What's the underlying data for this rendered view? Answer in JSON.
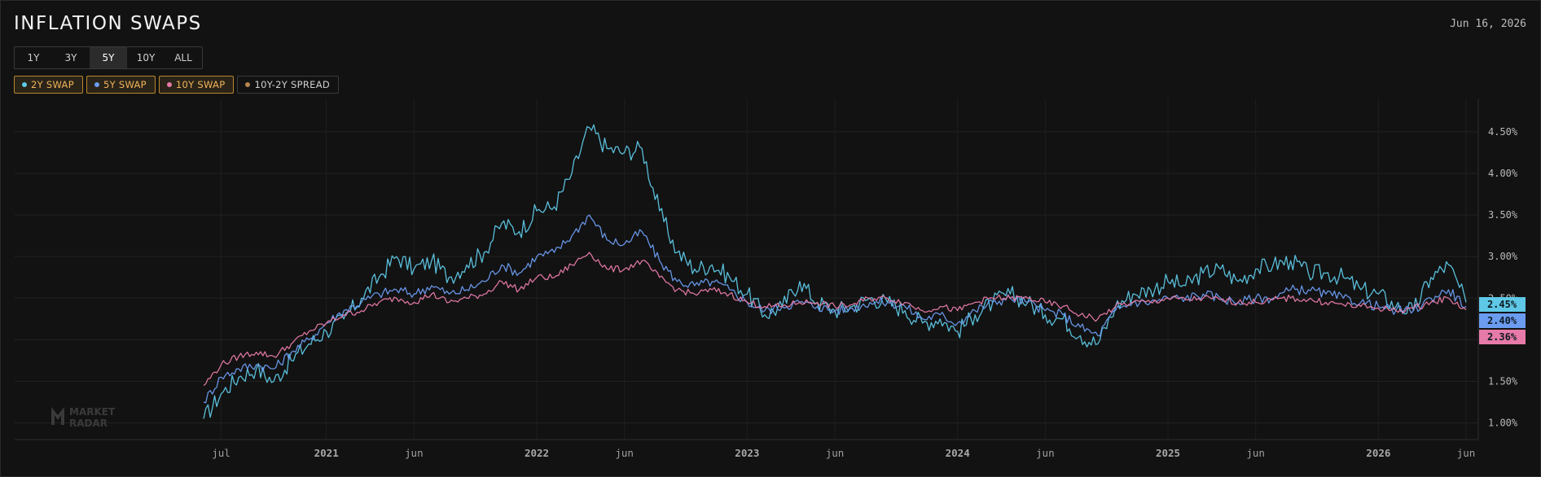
{
  "header": {
    "title": "INFLATION SWAPS",
    "date": "Jun 16, 2026"
  },
  "ranges": [
    {
      "label": "1Y",
      "active": false
    },
    {
      "label": "3Y",
      "active": false
    },
    {
      "label": "5Y",
      "active": true
    },
    {
      "label": "10Y",
      "active": false
    },
    {
      "label": "ALL",
      "active": false
    }
  ],
  "legend": [
    {
      "label": "2Y SWAP",
      "color": "#5ec8e6",
      "active": true
    },
    {
      "label": "5Y SWAP",
      "color": "#6b9cf0",
      "active": true
    },
    {
      "label": "10Y SWAP",
      "color": "#e67aa8",
      "active": true
    },
    {
      "label": "10Y-2Y SPREAD",
      "color": "#b8864e",
      "active": false
    }
  ],
  "watermark": "MARKET RADAR",
  "chart_data": {
    "type": "line",
    "x_axis_labels": [
      "jul",
      "2021",
      "jun",
      "2022",
      "jun",
      "2023",
      "jun",
      "2024",
      "jun",
      "2025",
      "jun",
      "2026",
      "jun"
    ],
    "y_axis_labels": [
      "4.50%",
      "4.00%",
      "3.50%",
      "3.00%",
      "2.50%",
      "2.00%",
      "1.50%",
      "1.00%"
    ],
    "ylim": [
      0.8,
      4.9
    ],
    "grid": true,
    "legend_placement": "top-left",
    "last_values": [
      {
        "series": "2Y SWAP",
        "label": "2.45%",
        "color": "#5ec8e6"
      },
      {
        "series": "5Y SWAP",
        "label": "2.40%",
        "color": "#6b9cf0"
      },
      {
        "series": "10Y SWAP",
        "label": "2.36%",
        "color": "#e67aa8"
      }
    ],
    "x": [
      "2020-06",
      "2020-07",
      "2020-08",
      "2020-09",
      "2020-10",
      "2020-11",
      "2020-12",
      "2021-01",
      "2021-02",
      "2021-03",
      "2021-04",
      "2021-05",
      "2021-06",
      "2021-07",
      "2021-08",
      "2021-09",
      "2021-10",
      "2021-11",
      "2021-12",
      "2022-01",
      "2022-02",
      "2022-03",
      "2022-04",
      "2022-05",
      "2022-06",
      "2022-07",
      "2022-08",
      "2022-09",
      "2022-10",
      "2022-11",
      "2022-12",
      "2023-01",
      "2023-02",
      "2023-03",
      "2023-04",
      "2023-05",
      "2023-06",
      "2023-07",
      "2023-08",
      "2023-09",
      "2023-10",
      "2023-11",
      "2023-12",
      "2024-01",
      "2024-02",
      "2024-03",
      "2024-04",
      "2024-05",
      "2024-06",
      "2024-07",
      "2024-08",
      "2024-09",
      "2024-10",
      "2024-11",
      "2024-12",
      "2025-01",
      "2025-02",
      "2025-03",
      "2025-04",
      "2025-05",
      "2025-06",
      "2025-07",
      "2025-08",
      "2025-09",
      "2025-10",
      "2025-11",
      "2025-12",
      "2026-01",
      "2026-02",
      "2026-03",
      "2026-04",
      "2026-05",
      "2026-06"
    ],
    "series": [
      {
        "name": "2Y SWAP",
        "color": "#5ec8e6",
        "values": [
          1.05,
          1.35,
          1.55,
          1.65,
          1.5,
          1.75,
          1.95,
          2.1,
          2.25,
          2.5,
          2.75,
          3.0,
          2.85,
          2.95,
          2.75,
          2.9,
          3.05,
          3.4,
          3.3,
          3.55,
          3.6,
          4.0,
          4.55,
          4.3,
          4.25,
          4.3,
          3.55,
          3.05,
          2.85,
          2.9,
          2.75,
          2.55,
          2.3,
          2.4,
          2.7,
          2.45,
          2.35,
          2.4,
          2.5,
          2.45,
          2.35,
          2.2,
          2.25,
          2.1,
          2.3,
          2.45,
          2.55,
          2.45,
          2.3,
          2.25,
          2.05,
          1.95,
          2.4,
          2.55,
          2.6,
          2.7,
          2.65,
          2.8,
          2.85,
          2.7,
          2.85,
          2.9,
          2.95,
          2.8,
          2.8,
          2.75,
          2.6,
          2.55,
          2.4,
          2.35,
          2.75,
          2.9,
          2.45
        ]
      },
      {
        "name": "5Y SWAP",
        "color": "#6b9cf0",
        "values": [
          1.25,
          1.55,
          1.65,
          1.7,
          1.65,
          1.85,
          2.0,
          2.2,
          2.35,
          2.45,
          2.55,
          2.6,
          2.55,
          2.65,
          2.55,
          2.6,
          2.7,
          2.9,
          2.8,
          3.0,
          3.05,
          3.25,
          3.5,
          3.2,
          3.15,
          3.3,
          2.95,
          2.7,
          2.65,
          2.7,
          2.6,
          2.45,
          2.35,
          2.4,
          2.45,
          2.4,
          2.35,
          2.38,
          2.45,
          2.45,
          2.4,
          2.25,
          2.3,
          2.2,
          2.35,
          2.45,
          2.5,
          2.45,
          2.35,
          2.3,
          2.15,
          2.05,
          2.35,
          2.45,
          2.45,
          2.5,
          2.5,
          2.55,
          2.5,
          2.45,
          2.5,
          2.5,
          2.6,
          2.6,
          2.55,
          2.5,
          2.45,
          2.4,
          2.35,
          2.35,
          2.5,
          2.6,
          2.4
        ]
      },
      {
        "name": "10Y SWAP",
        "color": "#e67aa8",
        "values": [
          1.45,
          1.7,
          1.8,
          1.85,
          1.8,
          1.95,
          2.1,
          2.2,
          2.3,
          2.35,
          2.45,
          2.5,
          2.45,
          2.55,
          2.45,
          2.5,
          2.55,
          2.7,
          2.6,
          2.75,
          2.75,
          2.9,
          3.05,
          2.85,
          2.85,
          2.95,
          2.75,
          2.6,
          2.55,
          2.6,
          2.55,
          2.45,
          2.4,
          2.4,
          2.45,
          2.45,
          2.4,
          2.42,
          2.5,
          2.5,
          2.45,
          2.35,
          2.4,
          2.35,
          2.45,
          2.5,
          2.5,
          2.5,
          2.45,
          2.4,
          2.3,
          2.25,
          2.4,
          2.45,
          2.45,
          2.5,
          2.48,
          2.5,
          2.48,
          2.45,
          2.45,
          2.48,
          2.5,
          2.48,
          2.45,
          2.42,
          2.4,
          2.38,
          2.35,
          2.38,
          2.45,
          2.5,
          2.36
        ]
      }
    ]
  }
}
